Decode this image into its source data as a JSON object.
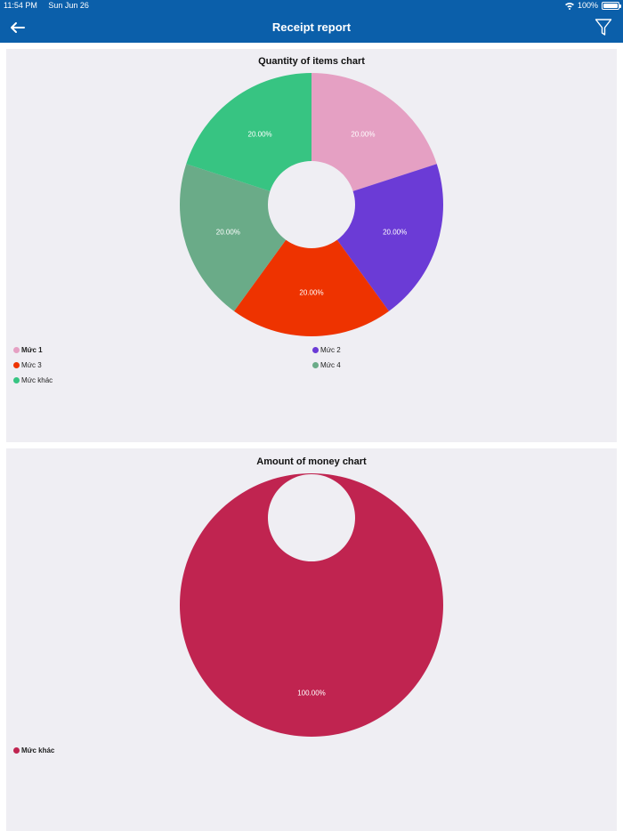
{
  "status_bar": {
    "time": "11:54 PM",
    "date": "Sun Jun 26",
    "battery": "100%"
  },
  "header": {
    "title": "Receipt report",
    "back_icon": "arrow-left-icon",
    "filter_icon": "filter-icon"
  },
  "colors": {
    "header_bg": "#0b5faa",
    "card_bg": "#efeef3"
  },
  "chart_data": [
    {
      "type": "pie",
      "title": "Quantity of items chart",
      "donut": true,
      "categories": [
        "Mức 1",
        "Mức 2",
        "Mức 3",
        "Mức 4",
        "Mức khác"
      ],
      "values": [
        20,
        20,
        20,
        20,
        20
      ],
      "labels": [
        "20.00%",
        "20.00%",
        "20.00%",
        "20.00%",
        "20.00%"
      ],
      "colors": [
        "#e5a0c3",
        "#6b3bd6",
        "#ee3300",
        "#6aab88",
        "#37c482"
      ]
    },
    {
      "type": "pie",
      "title": "Amount of money chart",
      "donut": true,
      "categories": [
        "Mức khác"
      ],
      "values": [
        100
      ],
      "labels": [
        "100.00%"
      ],
      "colors": [
        "#c02450"
      ]
    }
  ]
}
